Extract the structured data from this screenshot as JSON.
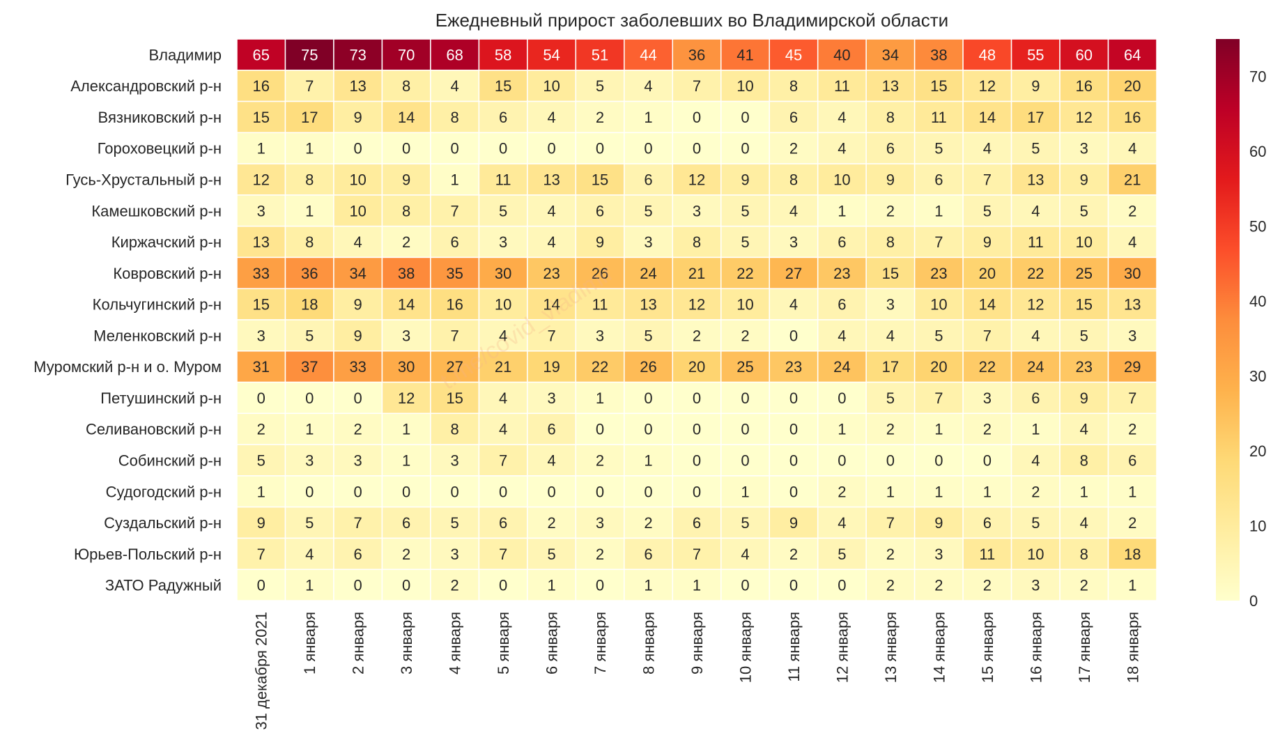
{
  "chart_data": {
    "type": "heatmap",
    "title": "Ежедневный прирост заболевших во Владимирской области",
    "watermark": "t.me/covid_vladimir",
    "rows": [
      "Владимир",
      "Александровский р-н",
      "Вязниковский р-н",
      "Гороховецкий р-н",
      "Гусь-Хрустальный р-н",
      "Камешковский р-н",
      "Киржачский р-н",
      "Ковровский р-н",
      "Кольчугинский р-н",
      "Меленковский р-н",
      "Муромский р-н и о. Муром",
      "Петушинский р-н",
      "Селивановский р-н",
      "Собинский р-н",
      "Судогодский р-н",
      "Суздальский р-н",
      "Юрьев-Польский р-н",
      "ЗАТО Радужный"
    ],
    "columns": [
      "31 декабря 2021",
      "1 января",
      "2 января",
      "3 января",
      "4 января",
      "5 января",
      "6 января",
      "7 января",
      "8 января",
      "9 января",
      "10 января",
      "11 января",
      "12 января",
      "13 января",
      "14 января",
      "15 января",
      "16 января",
      "17 января",
      "18 января"
    ],
    "values": [
      [
        65,
        75,
        73,
        70,
        68,
        58,
        54,
        51,
        44,
        36,
        41,
        45,
        40,
        34,
        38,
        48,
        55,
        60,
        64
      ],
      [
        16,
        7,
        13,
        8,
        4,
        15,
        10,
        5,
        4,
        7,
        10,
        8,
        11,
        13,
        15,
        12,
        9,
        16,
        20
      ],
      [
        15,
        17,
        9,
        14,
        8,
        6,
        4,
        2,
        1,
        0,
        0,
        6,
        4,
        8,
        11,
        14,
        17,
        12,
        16
      ],
      [
        1,
        1,
        0,
        0,
        0,
        0,
        0,
        0,
        0,
        0,
        0,
        2,
        4,
        6,
        5,
        4,
        5,
        3,
        4
      ],
      [
        12,
        8,
        10,
        9,
        1,
        11,
        13,
        15,
        6,
        12,
        9,
        8,
        10,
        9,
        6,
        7,
        13,
        9,
        21
      ],
      [
        3,
        1,
        10,
        8,
        7,
        5,
        4,
        6,
        5,
        3,
        5,
        4,
        1,
        2,
        1,
        5,
        4,
        5,
        2
      ],
      [
        13,
        8,
        4,
        2,
        6,
        3,
        4,
        9,
        3,
        8,
        5,
        3,
        6,
        8,
        7,
        9,
        11,
        10,
        4
      ],
      [
        33,
        36,
        34,
        38,
        35,
        30,
        23,
        26,
        24,
        21,
        22,
        27,
        23,
        15,
        23,
        20,
        22,
        25,
        30
      ],
      [
        15,
        18,
        9,
        14,
        16,
        10,
        14,
        11,
        13,
        12,
        10,
        4,
        6,
        3,
        10,
        14,
        12,
        15,
        13
      ],
      [
        3,
        5,
        9,
        3,
        7,
        4,
        7,
        3,
        5,
        2,
        2,
        0,
        4,
        4,
        5,
        7,
        4,
        5,
        3
      ],
      [
        31,
        37,
        33,
        30,
        27,
        21,
        19,
        22,
        26,
        20,
        25,
        23,
        24,
        17,
        20,
        22,
        24,
        23,
        29
      ],
      [
        0,
        0,
        0,
        12,
        15,
        4,
        3,
        1,
        0,
        0,
        0,
        0,
        0,
        5,
        7,
        3,
        6,
        9,
        7
      ],
      [
        2,
        1,
        2,
        1,
        8,
        4,
        6,
        0,
        0,
        0,
        0,
        0,
        1,
        2,
        1,
        2,
        1,
        4,
        2
      ],
      [
        5,
        3,
        3,
        1,
        3,
        7,
        4,
        2,
        1,
        0,
        0,
        0,
        0,
        0,
        0,
        0,
        4,
        8,
        6
      ],
      [
        1,
        0,
        0,
        0,
        0,
        0,
        0,
        0,
        0,
        0,
        1,
        0,
        2,
        1,
        1,
        1,
        2,
        1,
        1
      ],
      [
        9,
        5,
        7,
        6,
        5,
        6,
        2,
        3,
        2,
        6,
        5,
        9,
        4,
        7,
        9,
        6,
        5,
        4,
        2
      ],
      [
        7,
        4,
        6,
        2,
        3,
        7,
        5,
        2,
        6,
        7,
        4,
        2,
        5,
        2,
        3,
        11,
        10,
        8,
        18
      ],
      [
        0,
        1,
        0,
        0,
        2,
        0,
        1,
        0,
        1,
        1,
        0,
        0,
        0,
        2,
        2,
        2,
        3,
        2,
        1
      ]
    ],
    "colorscale": {
      "name": "YlOrRd",
      "vmin": 0,
      "vmax": 75,
      "ticks": [
        0,
        10,
        20,
        30,
        40,
        50,
        60,
        70
      ],
      "stops": [
        "#ffffcc",
        "#ffeda0",
        "#fed976",
        "#feb24c",
        "#fd8d3c",
        "#fc4e2a",
        "#e31a1c",
        "#bd0026",
        "#800026"
      ]
    },
    "annotation_color_dark": "#262626",
    "annotation_color_light": "#ffffff",
    "grid_line_color": "#ffffff",
    "text_color": "#262626"
  }
}
